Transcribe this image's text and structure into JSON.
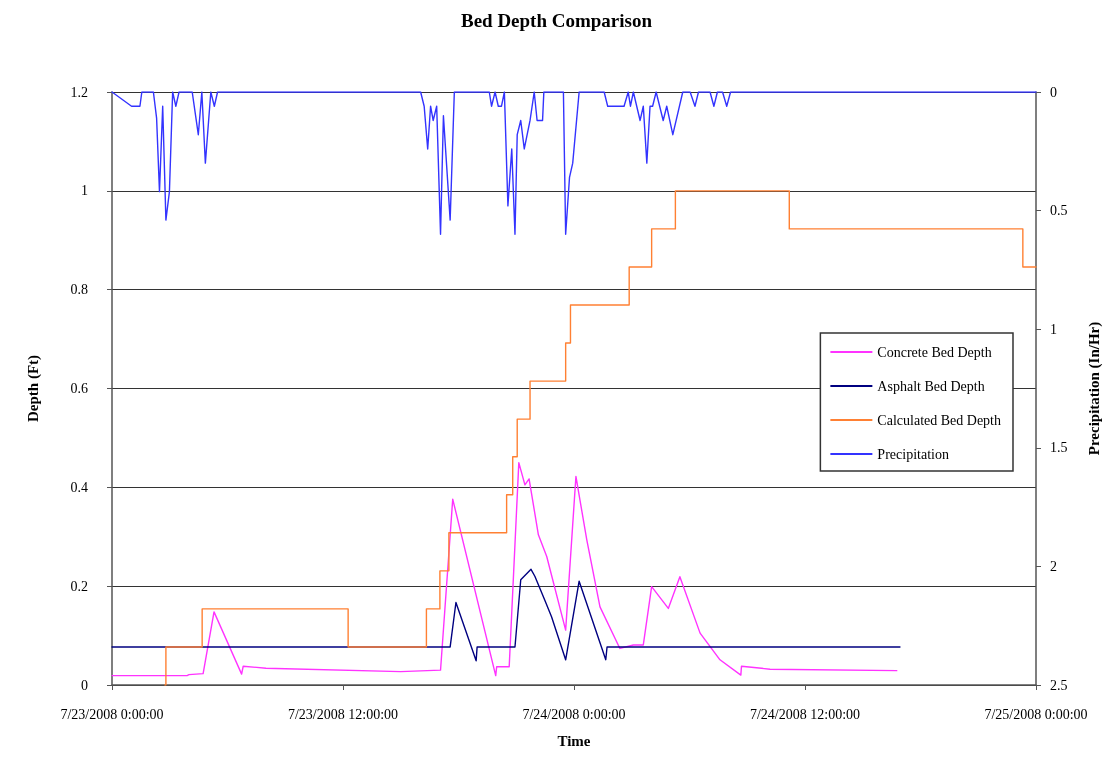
{
  "chart_data": {
    "type": "line",
    "title": "Bed Depth Comparison",
    "xlabel": "Time",
    "ylabel": "Depth (Ft)",
    "y2label": "Precipitation (In/Hr)",
    "xlim": [
      "2008-07-23T00:00",
      "2008-07-25T00:00"
    ],
    "xticks": [
      {
        "value": "2008-07-23T00:00",
        "label": "7/23/2008 0:00:00"
      },
      {
        "value": "2008-07-23T12:00",
        "label": "7/23/2008 12:00:00"
      },
      {
        "value": "2008-07-24T00:00",
        "label": "7/24/2008 0:00:00"
      },
      {
        "value": "2008-07-24T12:00",
        "label": "7/24/2008 12:00:00"
      },
      {
        "value": "2008-07-25T00:00",
        "label": "7/25/2008 0:00:00"
      }
    ],
    "ylim": [
      0,
      1.2
    ],
    "yticks": [
      0,
      0.2,
      0.4,
      0.6,
      0.8,
      1,
      1.2
    ],
    "y2lim": [
      2.5,
      0
    ],
    "y2ticks": [
      0,
      0.5,
      1,
      1.5,
      2,
      2.5
    ],
    "grid": "y",
    "legend": "right",
    "marker": "none",
    "line_style": "solid",
    "series": [
      {
        "name": "Concrete Bed Depth",
        "color": "#ff33ff",
        "x": [
          "2008-07-23T00:00",
          "2008-07-23T03:54",
          "2008-07-23T04:00",
          "2008-07-23T04:44",
          "2008-07-23T05:18",
          "2008-07-23T06:44",
          "2008-07-23T06:49",
          "2008-07-23T08:00",
          "2008-07-23T15:00",
          "2008-07-23T17:04",
          "2008-07-23T17:42",
          "2008-07-23T19:56",
          "2008-07-23T19:59",
          "2008-07-23T20:38",
          "2008-07-23T21:08",
          "2008-07-23T21:27",
          "2008-07-23T21:40",
          "2008-07-23T22:09",
          "2008-07-23T22:35",
          "2008-07-23T23:34",
          "2008-07-24T00:06",
          "2008-07-24T00:40",
          "2008-07-24T01:21",
          "2008-07-24T02:23",
          "2008-07-24T03:05",
          "2008-07-24T03:36",
          "2008-07-24T04:02",
          "2008-07-24T04:54",
          "2008-07-24T05:30",
          "2008-07-24T06:33",
          "2008-07-24T07:35",
          "2008-07-24T08:40",
          "2008-07-24T08:42",
          "2008-07-24T10:11",
          "2008-07-24T16:46"
        ],
        "values": [
          0.019,
          0.019,
          0.021,
          0.023,
          0.148,
          0.022,
          0.038,
          0.034,
          0.027,
          0.03,
          0.376,
          0.019,
          0.037,
          0.037,
          0.45,
          0.405,
          0.417,
          0.304,
          0.26,
          0.111,
          0.422,
          0.293,
          0.158,
          0.074,
          0.081,
          0.081,
          0.199,
          0.155,
          0.219,
          0.105,
          0.051,
          0.02,
          0.038,
          0.032,
          0.029
        ]
      },
      {
        "name": "Asphalt Bed Depth",
        "color": "#000080",
        "x": [
          "2008-07-23T00:00",
          "2008-07-23T17:34",
          "2008-07-23T17:52",
          "2008-07-23T18:55",
          "2008-07-23T18:58",
          "2008-07-23T20:56",
          "2008-07-23T21:14",
          "2008-07-23T21:46",
          "2008-07-23T21:58",
          "2008-07-23T22:30",
          "2008-07-23T22:50",
          "2008-07-23T23:34",
          "2008-07-24T00:16",
          "2008-07-24T01:39",
          "2008-07-24T01:43",
          "2008-07-24T16:56"
        ],
        "values": [
          0.077,
          0.077,
          0.167,
          0.049,
          0.077,
          0.077,
          0.213,
          0.234,
          0.22,
          0.17,
          0.138,
          0.051,
          0.21,
          0.051,
          0.077,
          0.077
        ]
      },
      {
        "name": "Calculated Bed Depth",
        "type": "step",
        "color": "#ff8033",
        "x": [
          "2008-07-23T02:45",
          "2008-07-23T02:48",
          "2008-07-23T04:41",
          "2008-07-23T12:16",
          "2008-07-23T16:20",
          "2008-07-23T17:02",
          "2008-07-23T17:30",
          "2008-07-23T20:30",
          "2008-07-23T20:49",
          "2008-07-23T21:03",
          "2008-07-23T21:43",
          "2008-07-23T23:34",
          "2008-07-23T23:49",
          "2008-07-24T02:52",
          "2008-07-24T04:02",
          "2008-07-24T05:16",
          "2008-07-24T11:11",
          "2008-07-24T23:19",
          "2008-07-25T00:00"
        ],
        "values": [
          0,
          0.077,
          0.154,
          0.077,
          0.154,
          0.231,
          0.308,
          0.385,
          0.462,
          0.538,
          0.615,
          0.692,
          0.769,
          0.846,
          0.923,
          1.0,
          0.923,
          0.846,
          0.846
        ]
      },
      {
        "name": "Precipitation",
        "axis": "y2",
        "color": "#3333ff",
        "x": [
          "2008-07-23T00:00",
          "2008-07-23T01:01",
          "2008-07-23T01:27",
          "2008-07-23T01:33",
          "2008-07-23T02:09",
          "2008-07-23T02:19",
          "2008-07-23T02:28",
          "2008-07-23T02:38",
          "2008-07-23T02:48",
          "2008-07-23T02:59",
          "2008-07-23T03:09",
          "2008-07-23T03:19",
          "2008-07-23T03:29",
          "2008-07-23T04:10",
          "2008-07-23T04:29",
          "2008-07-23T04:40",
          "2008-07-23T04:51",
          "2008-07-23T05:08",
          "2008-07-23T05:19",
          "2008-07-23T05:29",
          "2008-07-23T16:02",
          "2008-07-23T16:13",
          "2008-07-23T16:24",
          "2008-07-23T16:33",
          "2008-07-23T16:41",
          "2008-07-23T16:52",
          "2008-07-23T17:04",
          "2008-07-23T17:13",
          "2008-07-23T17:34",
          "2008-07-23T17:47",
          "2008-07-23T19:36",
          "2008-07-23T19:43",
          "2008-07-23T19:54",
          "2008-07-23T20:04",
          "2008-07-23T20:14",
          "2008-07-23T20:23",
          "2008-07-23T20:34",
          "2008-07-23T20:46",
          "2008-07-23T20:56",
          "2008-07-23T21:03",
          "2008-07-23T21:14",
          "2008-07-23T21:25",
          "2008-07-23T21:43",
          "2008-07-23T21:56",
          "2008-07-23T22:05",
          "2008-07-23T22:22",
          "2008-07-23T22:26",
          "2008-07-23T23:27",
          "2008-07-23T23:34",
          "2008-07-23T23:46",
          "2008-07-23T23:56",
          "2008-07-24T00:16",
          "2008-07-24T01:34",
          "2008-07-24T01:45",
          "2008-07-24T02:36",
          "2008-07-24T02:49",
          "2008-07-24T02:56",
          "2008-07-24T03:05",
          "2008-07-24T03:26",
          "2008-07-24T03:36",
          "2008-07-24T03:47",
          "2008-07-24T03:57",
          "2008-07-24T04:05",
          "2008-07-24T04:16",
          "2008-07-24T04:38",
          "2008-07-24T04:49",
          "2008-07-24T05:08",
          "2008-07-24T05:39",
          "2008-07-24T06:02",
          "2008-07-24T06:17",
          "2008-07-24T06:28",
          "2008-07-24T07:04",
          "2008-07-24T07:16",
          "2008-07-24T07:27",
          "2008-07-24T07:43",
          "2008-07-24T07:56",
          "2008-07-24T08:08",
          "2008-07-25T00:00"
        ],
        "values": [
          0,
          0.06,
          0.06,
          0,
          0,
          0.11,
          0.42,
          0.06,
          0.54,
          0.42,
          0,
          0.06,
          0,
          0,
          0.18,
          0,
          0.3,
          0,
          0.06,
          0,
          0,
          0.06,
          0.24,
          0.06,
          0.12,
          0.06,
          0.6,
          0.1,
          0.54,
          0,
          0,
          0.06,
          0,
          0.06,
          0.06,
          0,
          0.48,
          0.24,
          0.6,
          0.18,
          0.12,
          0.24,
          0.12,
          0,
          0.12,
          0.12,
          0,
          0,
          0.6,
          0.36,
          0.3,
          0,
          0,
          0.06,
          0.06,
          0,
          0.06,
          0,
          0.12,
          0.06,
          0.3,
          0.06,
          0.06,
          0,
          0.12,
          0.06,
          0.18,
          0,
          0,
          0.06,
          0,
          0,
          0.06,
          0,
          0,
          0.06,
          0,
          0
        ]
      }
    ]
  }
}
